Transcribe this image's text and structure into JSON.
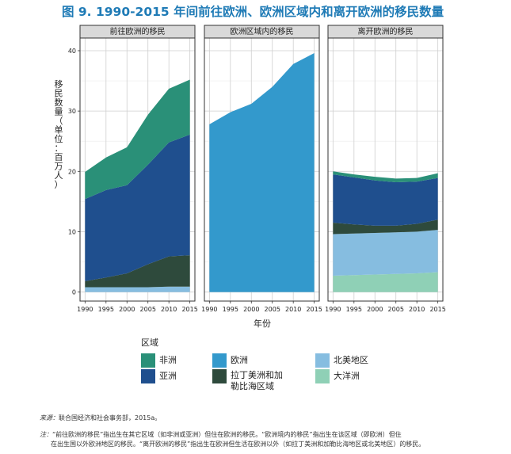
{
  "figure": {
    "title": "图 9. 1990-2015 年间前往欧洲、欧洲区域内和离开欧洲的移民数量"
  },
  "chart_data": {
    "type": "area",
    "x_label": "年份",
    "y_label": "移民数量（单位：百万人）",
    "x_ticks": [
      1990,
      1995,
      2000,
      2005,
      2010,
      2015
    ],
    "y_ticks": [
      0,
      10,
      20,
      30,
      40
    ],
    "ylim": [
      0,
      42
    ],
    "legend_title": "区域",
    "series_colors": {
      "africa": "#2a9078",
      "asia": "#1f4f8e",
      "europe": "#3399cc",
      "latam": "#2e4a3c",
      "northam": "#86bde0",
      "oceania": "#8fd0b6"
    },
    "legend": [
      {
        "key": "africa",
        "label": "非洲"
      },
      {
        "key": "europe",
        "label": "欧洲"
      },
      {
        "key": "northam",
        "label": "北美地区"
      },
      {
        "key": "asia",
        "label": "亚洲"
      },
      {
        "key": "latam",
        "label": "拉丁美洲和加勒比海区域"
      },
      {
        "key": "oceania",
        "label": "大洋洲"
      }
    ],
    "panels": [
      {
        "title": "前往欧洲的移民",
        "x": [
          1990,
          1995,
          2000,
          2005,
          2010,
          2015
        ],
        "stack": [
          {
            "key": "northam",
            "values": [
              0.8,
              0.8,
              0.8,
              0.8,
              0.9,
              0.9
            ]
          },
          {
            "key": "latam",
            "values": [
              1.0,
              1.6,
              2.3,
              3.8,
              5.0,
              5.2
            ]
          },
          {
            "key": "asia",
            "values": [
              13.6,
              14.5,
              14.6,
              16.5,
              18.9,
              20.0
            ]
          },
          {
            "key": "africa",
            "values": [
              4.5,
              5.4,
              6.3,
              8.3,
              8.9,
              9.1
            ]
          }
        ]
      },
      {
        "title": "欧洲区域内的移民",
        "x": [
          1990,
          1995,
          2000,
          2005,
          2010,
          2015
        ],
        "stack": [
          {
            "key": "europe",
            "values": [
              27.8,
              29.8,
              31.2,
              34.0,
              37.8,
              39.6
            ]
          }
        ]
      },
      {
        "title": "离开欧洲的移民",
        "x": [
          1990,
          1995,
          2000,
          2005,
          2010,
          2015
        ],
        "stack": [
          {
            "key": "oceania",
            "values": [
              2.7,
              2.8,
              2.9,
              3.0,
              3.1,
              3.3
            ]
          },
          {
            "key": "northam",
            "values": [
              6.9,
              6.9,
              6.9,
              6.9,
              6.9,
              7.0
            ]
          },
          {
            "key": "latam",
            "values": [
              1.9,
              1.5,
              1.2,
              1.1,
              1.3,
              1.7
            ]
          },
          {
            "key": "asia",
            "values": [
              8.0,
              7.8,
              7.5,
              7.2,
              7.0,
              6.9
            ]
          },
          {
            "key": "africa",
            "values": [
              0.5,
              0.5,
              0.6,
              0.6,
              0.6,
              0.8
            ]
          }
        ]
      }
    ]
  },
  "source_label": "来源：",
  "source_text": "联合国经济和社会事务部，2015a。",
  "note_label": "注：",
  "note_line1": "“前往欧洲的移民”指出生在其它区域（如非洲或亚洲）但住在欧洲的移民。“欧洲境内的移民”指出生在该区域（即欧洲）但住",
  "note_line2": "在出生国以外欧洲地区的移民。“离开欧洲的移民”指出生在欧洲但生活在欧洲以外（如拉丁美洲和加勒比海地区或北美地区）的移民。"
}
